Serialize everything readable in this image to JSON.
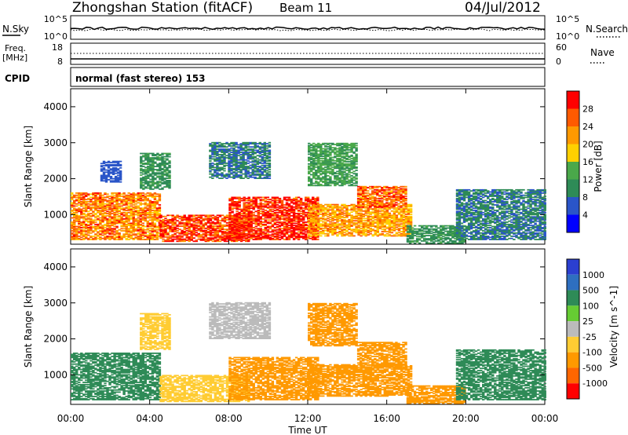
{
  "header": {
    "station": "Zhongshan Station (fitACF)",
    "beam": "Beam 11",
    "date": "04/Jul/2012"
  },
  "summary_panels": {
    "nsky_label": "N.Sky",
    "nsky_ticks": [
      "10^5",
      "10^0"
    ],
    "nsearch_label": "N.Search",
    "nsearch_ticks": [
      "10^5",
      "10^0"
    ],
    "freq_label": "Freq.",
    "freq_unit": "[MHz]",
    "freq_ticks": [
      "18",
      "8"
    ],
    "nave_label": "Nave",
    "nave_ticks": [
      "60",
      "0"
    ],
    "cpid_label": "CPID",
    "cpid_value": "normal (fast stereo) 153"
  },
  "colors": {
    "power_scale": [
      "#0000ff",
      "#2a55c8",
      "#2e8b57",
      "#4aa84a",
      "#ffd000",
      "#ff9900",
      "#ff5a00",
      "#ff0000"
    ],
    "velocity_scale": [
      "#2b3fd0",
      "#2e6fc0",
      "#2e8b57",
      "#66cc33",
      "#bbbbbb",
      "#ffcc33",
      "#ff9900",
      "#ff6600",
      "#ff0000"
    ]
  },
  "chart_data": [
    {
      "type": "heatmap",
      "name": "power",
      "ylabel": "Slant Range [km]",
      "ylim": [
        180,
        4500
      ],
      "yticks": [
        "1000",
        "2000",
        "3000",
        "4000"
      ],
      "xlim": [
        "00:00",
        "24:00"
      ],
      "colorbar": {
        "label": "Power [dB]",
        "ticks": [
          "4",
          "8",
          "12",
          "16",
          "20",
          "24",
          "28"
        ],
        "range": [
          0,
          30
        ]
      },
      "regions": [
        {
          "t": [
            0.0,
            4.5
          ],
          "r": [
            300,
            1600
          ],
          "value": 22
        },
        {
          "t": [
            4.5,
            9.0
          ],
          "r": [
            250,
            1000
          ],
          "value": 26
        },
        {
          "t": [
            8.0,
            12.5
          ],
          "r": [
            300,
            1500
          ],
          "value": 28
        },
        {
          "t": [
            12.0,
            17.2
          ],
          "r": [
            400,
            1300
          ],
          "value": 20
        },
        {
          "t": [
            14.5,
            17.0
          ],
          "r": [
            1200,
            1800
          ],
          "value": 24
        },
        {
          "t": [
            17.0,
            20.0
          ],
          "r": [
            200,
            700
          ],
          "value": 10
        },
        {
          "t": [
            19.5,
            24.0
          ],
          "r": [
            300,
            1700
          ],
          "value": 8
        },
        {
          "t": [
            1.5,
            2.5
          ],
          "r": [
            1900,
            2500
          ],
          "value": 6
        },
        {
          "t": [
            3.5,
            5.0
          ],
          "r": [
            1700,
            2700
          ],
          "value": 10
        },
        {
          "t": [
            7.0,
            10.0
          ],
          "r": [
            2000,
            3000
          ],
          "value": 8
        },
        {
          "t": [
            12.0,
            14.5
          ],
          "r": [
            1800,
            3000
          ],
          "value": 12
        }
      ]
    },
    {
      "type": "heatmap",
      "name": "velocity",
      "ylabel": "Slant Range [km]",
      "ylim": [
        180,
        4500
      ],
      "yticks": [
        "1000",
        "2000",
        "3000",
        "4000"
      ],
      "xlim": [
        "00:00",
        "24:00"
      ],
      "xticks": [
        "00:00",
        "04:00",
        "08:00",
        "12:00",
        "16:00",
        "20:00",
        "00:00"
      ],
      "xlabel": "Time UT",
      "colorbar": {
        "label": "Velocity [m s^-1]",
        "ticks": [
          "1000",
          "500",
          "100",
          "25",
          "-25",
          "-100",
          "-500",
          "-1000"
        ]
      },
      "regions": [
        {
          "t": [
            0.0,
            4.5
          ],
          "r": [
            300,
            1600
          ],
          "value": 150
        },
        {
          "t": [
            4.5,
            9.0
          ],
          "r": [
            250,
            1000
          ],
          "value": -80
        },
        {
          "t": [
            8.0,
            12.5
          ],
          "r": [
            300,
            1500
          ],
          "value": -300
        },
        {
          "t": [
            12.0,
            17.2
          ],
          "r": [
            400,
            1300
          ],
          "value": -400
        },
        {
          "t": [
            14.5,
            17.0
          ],
          "r": [
            1200,
            1900
          ],
          "value": -350
        },
        {
          "t": [
            17.0,
            20.0
          ],
          "r": [
            200,
            700
          ],
          "value": -150
        },
        {
          "t": [
            19.5,
            24.0
          ],
          "r": [
            300,
            1700
          ],
          "value": 400
        },
        {
          "t": [
            3.5,
            5.0
          ],
          "r": [
            1700,
            2700
          ],
          "value": -60
        },
        {
          "t": [
            7.0,
            10.0
          ],
          "r": [
            2000,
            3000
          ],
          "value": 20
        },
        {
          "t": [
            12.0,
            14.5
          ],
          "r": [
            1800,
            3000
          ],
          "value": -200
        }
      ]
    }
  ]
}
